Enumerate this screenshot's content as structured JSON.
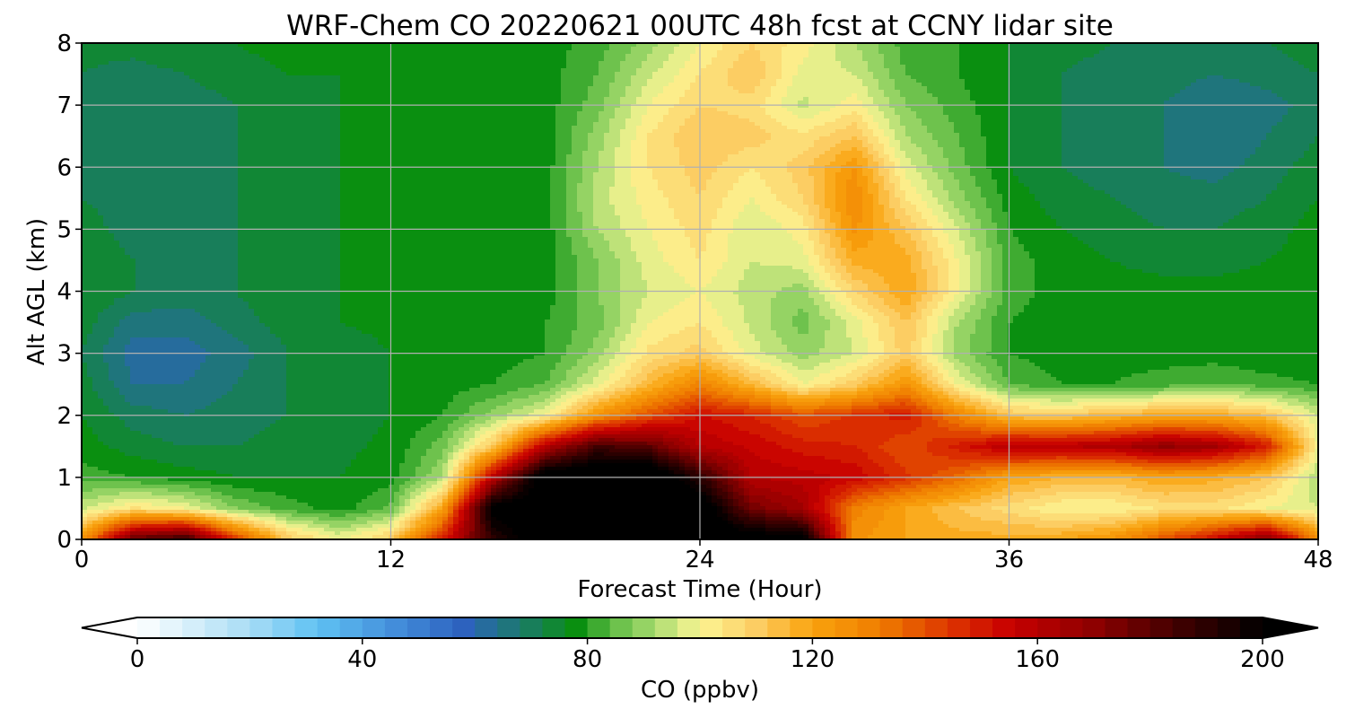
{
  "chart_data": {
    "type": "heatmap",
    "title": "WRF-Chem CO  20220621 00UTC 48h fcst at CCNY lidar site",
    "xlabel": "Forecast Time (Hour)",
    "ylabel": "Alt AGL (km)",
    "xlim": [
      0,
      48
    ],
    "ylim": [
      0,
      8
    ],
    "x_ticks": [
      0,
      12,
      24,
      36,
      48
    ],
    "y_ticks": [
      0,
      1,
      2,
      3,
      4,
      5,
      6,
      7,
      8
    ],
    "grid": true,
    "colorbar": {
      "label": "CO  (ppbv)",
      "range": [
        0,
        200
      ],
      "ticks": [
        0,
        40,
        80,
        120,
        160,
        200
      ],
      "extend": "both",
      "orientation": "horizontal",
      "placement": "bottom",
      "color_stops": [
        {
          "value": 0,
          "color": "#ffffff"
        },
        {
          "value": 20,
          "color": "#a8dcf5"
        },
        {
          "value": 32,
          "color": "#5fc1f3"
        },
        {
          "value": 48,
          "color": "#3f86d6"
        },
        {
          "value": 58,
          "color": "#2d62be"
        },
        {
          "value": 68,
          "color": "#1c7a6c"
        },
        {
          "value": 78,
          "color": "#0a8f10"
        },
        {
          "value": 84,
          "color": "#5ab941"
        },
        {
          "value": 92,
          "color": "#a9dc70"
        },
        {
          "value": 100,
          "color": "#fcf594"
        },
        {
          "value": 110,
          "color": "#fccd63"
        },
        {
          "value": 120,
          "color": "#f9a20d"
        },
        {
          "value": 132,
          "color": "#ef7d00"
        },
        {
          "value": 145,
          "color": "#dc3200"
        },
        {
          "value": 155,
          "color": "#c80000"
        },
        {
          "value": 170,
          "color": "#8e0000"
        },
        {
          "value": 185,
          "color": "#400000"
        },
        {
          "value": 200,
          "color": "#000000"
        }
      ]
    },
    "grid_x": [
      0,
      2,
      4,
      6,
      8,
      10,
      12,
      14,
      16,
      18,
      20,
      22,
      24,
      26,
      28,
      30,
      32,
      34,
      36,
      38,
      40,
      42,
      44,
      46,
      48
    ],
    "grid_y": [
      0,
      0.5,
      1,
      1.5,
      2,
      2.5,
      3,
      3.5,
      4,
      4.5,
      5,
      5.5,
      6,
      6.5,
      7,
      7.5,
      8
    ],
    "values": [
      [
        125,
        180,
        190,
        145,
        112,
        100,
        110,
        150,
        190,
        210,
        215,
        215,
        210,
        208,
        205,
        125,
        120,
        118,
        118,
        120,
        125,
        140,
        155,
        175,
        128
      ],
      [
        95,
        105,
        100,
        88,
        82,
        78,
        85,
        120,
        205,
        210,
        215,
        215,
        210,
        175,
        165,
        130,
        120,
        112,
        106,
        100,
        100,
        105,
        105,
        100,
        96
      ],
      [
        82,
        80,
        78,
        76,
        76,
        76,
        78,
        92,
        160,
        210,
        215,
        215,
        190,
        160,
        158,
        155,
        145,
        135,
        120,
        116,
        115,
        120,
        118,
        112,
        92
      ],
      [
        78,
        74,
        72,
        72,
        74,
        75,
        77,
        86,
        112,
        160,
        185,
        180,
        160,
        155,
        150,
        148,
        140,
        150,
        160,
        160,
        162,
        170,
        165,
        150,
        100
      ],
      [
        76,
        70,
        68,
        70,
        72,
        74,
        76,
        80,
        90,
        100,
        125,
        140,
        152,
        148,
        140,
        145,
        150,
        130,
        112,
        110,
        115,
        118,
        118,
        112,
        96
      ],
      [
        74,
        64,
        64,
        68,
        72,
        74,
        76,
        78,
        80,
        84,
        98,
        115,
        130,
        115,
        100,
        110,
        125,
        100,
        84,
        80,
        80,
        82,
        84,
        82,
        80
      ],
      [
        72,
        62,
        62,
        66,
        72,
        74,
        76,
        78,
        78,
        80,
        90,
        105,
        110,
        98,
        90,
        96,
        110,
        90,
        80,
        78,
        78,
        78,
        78,
        76,
        76
      ],
      [
        74,
        66,
        66,
        70,
        74,
        76,
        77,
        78,
        78,
        80,
        86,
        100,
        104,
        95,
        86,
        98,
        112,
        92,
        80,
        78,
        77,
        77,
        77,
        77,
        77
      ],
      [
        76,
        72,
        70,
        72,
        76,
        76,
        77,
        78,
        78,
        78,
        88,
        96,
        100,
        94,
        90,
        108,
        120,
        100,
        82,
        78,
        78,
        78,
        78,
        78,
        78
      ],
      [
        76,
        72,
        70,
        72,
        75,
        76,
        77,
        78,
        78,
        78,
        88,
        98,
        104,
        96,
        98,
        118,
        118,
        100,
        82,
        78,
        76,
        74,
        74,
        76,
        78
      ],
      [
        74,
        70,
        70,
        72,
        75,
        76,
        77,
        78,
        78,
        78,
        92,
        100,
        106,
        96,
        102,
        125,
        112,
        96,
        80,
        76,
        74,
        72,
        72,
        74,
        78
      ],
      [
        72,
        70,
        70,
        72,
        74,
        76,
        77,
        78,
        80,
        78,
        94,
        102,
        108,
        100,
        108,
        128,
        104,
        90,
        78,
        74,
        72,
        70,
        70,
        72,
        76
      ],
      [
        72,
        70,
        70,
        72,
        74,
        76,
        77,
        78,
        80,
        78,
        92,
        104,
        110,
        104,
        110,
        124,
        98,
        86,
        76,
        72,
        70,
        68,
        66,
        70,
        74
      ],
      [
        72,
        68,
        70,
        72,
        74,
        76,
        77,
        78,
        78,
        78,
        90,
        104,
        112,
        110,
        105,
        112,
        92,
        84,
        76,
        72,
        70,
        68,
        64,
        68,
        72
      ],
      [
        72,
        68,
        70,
        72,
        74,
        76,
        77,
        78,
        78,
        78,
        86,
        100,
        108,
        106,
        95,
        102,
        88,
        82,
        76,
        72,
        70,
        68,
        64,
        66,
        70
      ],
      [
        72,
        70,
        72,
        74,
        76,
        76,
        78,
        78,
        78,
        78,
        84,
        95,
        104,
        112,
        98,
        96,
        84,
        80,
        76,
        72,
        70,
        70,
        68,
        70,
        72
      ],
      [
        74,
        74,
        76,
        76,
        78,
        78,
        78,
        78,
        78,
        78,
        82,
        90,
        100,
        108,
        102,
        92,
        82,
        80,
        76,
        74,
        72,
        72,
        72,
        72,
        74
      ]
    ]
  }
}
